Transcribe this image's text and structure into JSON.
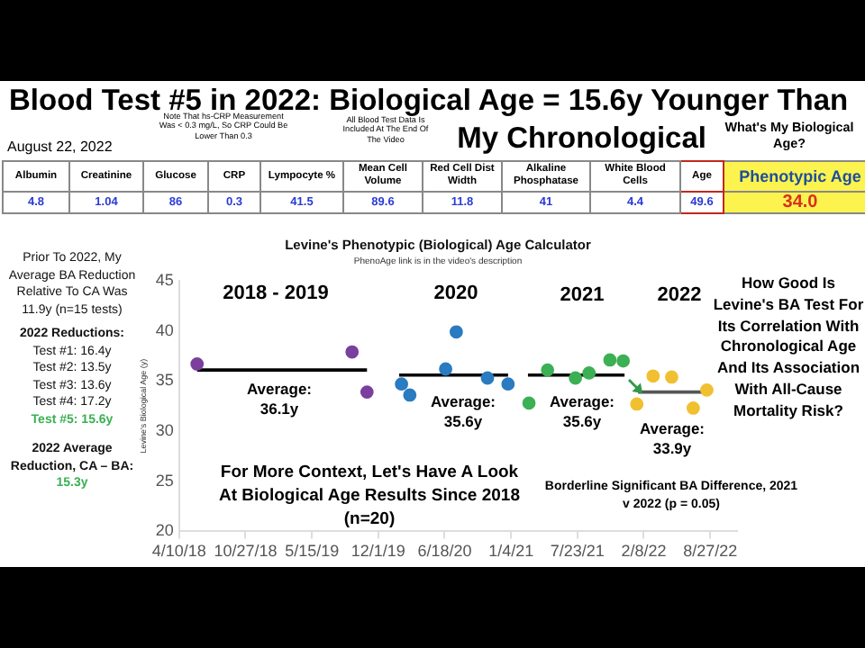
{
  "chart_data": [
    {
      "type": "other",
      "title": "Blood Test #5 in 2022: Biological Age = 15.6y Younger Than My Chronological",
      "subtitle": "August 22, 2022",
      "annotations": [
        "Note That hs-CRP Measurement Was < 0.3 mg/L, So CRP Could Be Lower Than 0.3",
        "All Blood Test Data Is Included At The End Of The Video",
        "What's My Biological Age?"
      ],
      "categories": [
        "Albumin",
        "Creatinine",
        "Glucose",
        "CRP",
        "Lympocyte %",
        "Mean Cell Volume",
        "Red Cell Dist Width",
        "Alkaline Phosphatase",
        "White Blood Cells",
        "Age",
        "Phenotypic Age"
      ],
      "values": [
        4.8,
        1.04,
        86,
        0.3,
        41.5,
        89.6,
        11.8,
        41,
        4.4,
        49.6,
        34.0
      ],
      "value_labels": [
        "4.8",
        "1.04",
        "86",
        "0.3",
        "41.5",
        "89.6",
        "11.8",
        "41",
        "4.4",
        "49.6",
        "34.0"
      ]
    },
    {
      "type": "scatter",
      "title": "Levine's Phenotypic (Biological) Age Calculator",
      "subtitle": "PhenoAge link is in the video's description",
      "ylabel": "Levine's Biological Age (y)",
      "xlim": [
        "2018-04-10",
        "2022-11-16"
      ],
      "xticks": [
        {
          "value": "2018-04-10",
          "label": "4/10/18"
        },
        {
          "value": "2018-10-27",
          "label": "10/27/18"
        },
        {
          "value": "2019-05-15",
          "label": "5/15/19"
        },
        {
          "value": "2019-12-01",
          "label": "12/1/19"
        },
        {
          "value": "2020-06-18",
          "label": "6/18/20"
        },
        {
          "value": "2021-01-04",
          "label": "1/4/21"
        },
        {
          "value": "2021-07-23",
          "label": "7/23/21"
        },
        {
          "value": "2022-02-08",
          "label": "2/8/22"
        },
        {
          "value": "2022-08-27",
          "label": "8/27/22"
        }
      ],
      "ylim": [
        20,
        45
      ],
      "yticks": [
        20,
        25,
        30,
        35,
        40,
        45
      ],
      "grid": false,
      "legend": false,
      "marker": "circle",
      "series": [
        {
          "color": "#7b3f9e",
          "x": [
            "2018-06-03",
            "2019-09-13",
            "2019-10-28"
          ],
          "values": [
            36.7,
            37.9,
            33.9
          ]
        },
        {
          "color": "#2a7bc0",
          "x": [
            "2020-02-09",
            "2020-03-05",
            "2020-06-21",
            "2020-07-23",
            "2020-10-25",
            "2020-12-26"
          ],
          "values": [
            34.7,
            33.6,
            36.2,
            39.9,
            35.3,
            34.7
          ]
        },
        {
          "color": "#3cb054",
          "x": [
            "2021-02-27",
            "2021-04-24",
            "2021-07-17",
            "2021-08-27",
            "2021-10-29",
            "2021-12-08"
          ],
          "values": [
            32.8,
            36.1,
            35.3,
            35.8,
            37.1,
            37.0
          ]
        },
        {
          "color": "#f0c030",
          "x": [
            "2022-01-18",
            "2022-03-08",
            "2022-05-03",
            "2022-07-07",
            "2022-08-17"
          ],
          "values": [
            32.7,
            35.5,
            35.4,
            32.3,
            34.1
          ]
        },
        {
          "type": "line",
          "marker": "none",
          "color": "#000000",
          "x": [
            "2018-06-03",
            "2019-10-28"
          ],
          "values": [
            36.1,
            36.1
          ]
        },
        {
          "type": "line",
          "marker": "none",
          "color": "#000000",
          "x": [
            "2020-02-02",
            "2020-12-26"
          ],
          "values": [
            35.6,
            35.6
          ]
        },
        {
          "type": "line",
          "marker": "none",
          "color": "#000000",
          "x": [
            "2021-02-24",
            "2021-12-12"
          ],
          "values": [
            35.6,
            35.6
          ]
        },
        {
          "type": "line",
          "marker": "none",
          "color": "#555555",
          "x": [
            "2022-01-22",
            "2022-08-20"
          ],
          "values": [
            33.9,
            33.9
          ]
        }
      ],
      "annotations": [
        "2018 - 2019",
        "2020",
        "2021",
        "2022",
        "Average: 36.1y",
        "Average: 35.6y",
        "Average: 35.6y",
        "Average: 33.9y",
        "For More Context, Let's Have A Look At Biological Age Results Since 2018 (n=20)",
        "Borderline Significant BA Difference, 2021 v 2022 (p = 0.05)",
        "Prior To 2022, My Average BA Reduction Relative To CA Was 11.9y (n=15 tests)",
        "2022 Reductions:",
        "Test #1: 16.4y",
        "Test #2: 13.5y",
        "Test #3: 13.6y",
        "Test #4: 17.2y",
        "Test #5: 15.6y",
        "2022 Average Reduction, CA – BA:",
        "15.3y",
        "How Good Is Levine's BA Test For Its Correlation With Chronological Age And Its Association With All-Cause Mortality Risk?"
      ]
    }
  ]
}
